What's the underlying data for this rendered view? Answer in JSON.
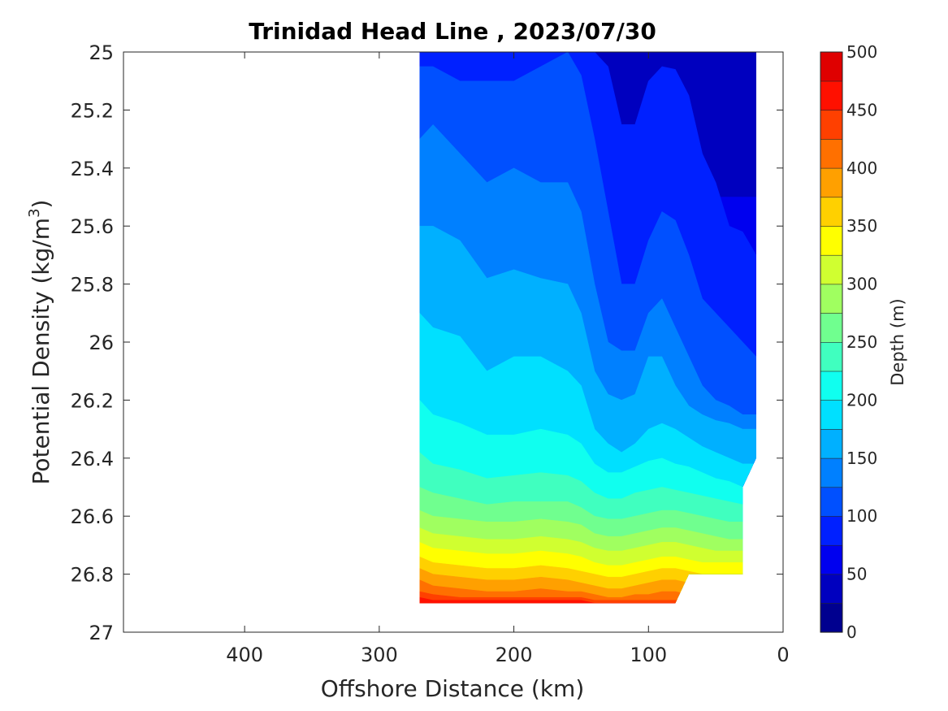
{
  "chart_data": {
    "type": "contour",
    "title": "Trinidad Head Line , 2023/07/30",
    "xlabel": "Offshore Distance (km)",
    "ylabel": "Potential Density (kg/m",
    "ylabel_superscript": "3",
    "ylabel_close": ")",
    "xlim": [
      490,
      0
    ],
    "ylim": [
      25,
      27
    ],
    "x_reversed": true,
    "y_reversed": true,
    "x_ticks": [
      400,
      300,
      200,
      100,
      0
    ],
    "y_ticks": [
      25,
      25.2,
      25.4,
      25.6,
      25.8,
      26,
      26.2,
      26.4,
      26.6,
      26.8,
      27
    ],
    "y_tick_labels": [
      "25",
      "25.2",
      "25.4",
      "25.6",
      "25.8",
      "26",
      "26.2",
      "26.4",
      "26.6",
      "26.8",
      "27"
    ],
    "grid": false,
    "colorscale": "jet",
    "colorbar": {
      "label": "Depth (m)",
      "min": 0,
      "max": 500,
      "step": 25,
      "ticks": [
        0,
        50,
        100,
        150,
        200,
        250,
        300,
        350,
        400,
        450,
        500
      ],
      "colors": [
        "#00008f",
        "#0000bf",
        "#0000ef",
        "#0020ff",
        "#0050ff",
        "#0080ff",
        "#00b0ff",
        "#00e0ff",
        "#10ffef",
        "#40ffbf",
        "#70ff8f",
        "#a0ff60",
        "#d0ff30",
        "#ffff00",
        "#ffd000",
        "#ffa000",
        "#ff7000",
        "#ff4000",
        "#ff1000",
        "#df0000"
      ]
    },
    "x": [
      270,
      260,
      240,
      220,
      200,
      180,
      160,
      150,
      140,
      130,
      120,
      110,
      100,
      90,
      80,
      70,
      60,
      50,
      40,
      30,
      20
    ],
    "contour_level_densities": [
      [
        25.0,
        25.0,
        25.0,
        25.0,
        25.0,
        25.0,
        25.0,
        25.0,
        25.0,
        25.0,
        25.0,
        25.0,
        25.0,
        25.0,
        25.0,
        25.0,
        25.0,
        25.0,
        25.0,
        25.0,
        25.0
      ],
      [
        25.0,
        25.0,
        25.0,
        25.0,
        25.1,
        25.05,
        25.0,
        25.0,
        25.0,
        25.0,
        25.0,
        25.0,
        25.0,
        25.0,
        25.0,
        25.0,
        25.0,
        25.0,
        25.0,
        25.0,
        25.0
      ],
      [
        25.0,
        25.0,
        25.0,
        25.0,
        25.0,
        25.0,
        25.0,
        25.0,
        25.0,
        25.2,
        25.4,
        25.38,
        25.2,
        25.05,
        25.06,
        25.2,
        25.4,
        25.5,
        25.5,
        25.5,
        25.5
      ],
      [
        25.0,
        25.0,
        25.0,
        25.0,
        25.0,
        25.0,
        25.0,
        25.0,
        25.0,
        25.05,
        25.25,
        25.25,
        25.1,
        25.05,
        25.06,
        25.15,
        25.35,
        25.45,
        25.6,
        25.62,
        25.7
      ],
      [
        25.05,
        25.05,
        25.1,
        25.1,
        25.1,
        25.05,
        25.0,
        25.08,
        25.3,
        25.55,
        25.8,
        25.8,
        25.65,
        25.55,
        25.58,
        25.7,
        25.85,
        25.9,
        25.95,
        26.0,
        26.05
      ],
      [
        25.3,
        25.25,
        25.35,
        25.45,
        25.4,
        25.45,
        25.45,
        25.55,
        25.8,
        26.0,
        26.03,
        26.03,
        25.9,
        25.85,
        25.95,
        26.05,
        26.15,
        26.2,
        26.22,
        26.25,
        26.25
      ],
      [
        25.6,
        25.6,
        25.65,
        25.78,
        25.75,
        25.78,
        25.8,
        25.9,
        26.1,
        26.18,
        26.2,
        26.18,
        26.05,
        26.05,
        26.15,
        26.22,
        26.25,
        26.27,
        26.28,
        26.3,
        26.3
      ],
      [
        25.9,
        25.95,
        25.98,
        26.1,
        26.05,
        26.05,
        26.1,
        26.15,
        26.3,
        26.35,
        26.38,
        26.35,
        26.3,
        26.28,
        26.3,
        26.33,
        26.36,
        26.38,
        26.4,
        26.42,
        26.42
      ],
      [
        26.2,
        26.25,
        26.28,
        26.32,
        26.32,
        26.3,
        26.32,
        26.35,
        26.42,
        26.45,
        26.45,
        26.43,
        26.41,
        26.4,
        26.42,
        26.43,
        26.45,
        26.47,
        26.48,
        26.5,
        26.5
      ],
      [
        26.38,
        26.42,
        26.44,
        26.47,
        26.46,
        26.45,
        26.46,
        26.48,
        26.52,
        26.54,
        26.54,
        26.52,
        26.51,
        26.5,
        26.51,
        26.52,
        26.53,
        26.54,
        26.55,
        26.56,
        26.56
      ],
      [
        26.5,
        26.52,
        26.54,
        26.56,
        26.55,
        26.55,
        26.55,
        26.57,
        26.6,
        26.61,
        26.61,
        26.6,
        26.59,
        26.58,
        26.58,
        26.59,
        26.6,
        26.61,
        26.62,
        26.62,
        26.62
      ],
      [
        26.58,
        26.6,
        26.61,
        26.62,
        26.62,
        26.61,
        26.62,
        26.63,
        26.66,
        26.67,
        26.67,
        26.66,
        26.65,
        26.64,
        26.64,
        26.65,
        26.66,
        26.67,
        26.68,
        26.68,
        26.68
      ],
      [
        26.64,
        26.66,
        26.67,
        26.68,
        26.68,
        26.67,
        26.68,
        26.69,
        26.71,
        26.72,
        26.72,
        26.71,
        26.7,
        26.69,
        26.69,
        26.7,
        26.71,
        26.72,
        26.72,
        26.72,
        26.72
      ],
      [
        26.69,
        26.71,
        26.72,
        26.73,
        26.73,
        26.72,
        26.73,
        26.74,
        26.76,
        26.77,
        26.77,
        26.76,
        26.75,
        26.74,
        26.74,
        26.75,
        26.76,
        26.76,
        26.76,
        26.76,
        26.76
      ],
      [
        26.74,
        26.76,
        26.77,
        26.78,
        26.78,
        26.77,
        26.78,
        26.79,
        26.8,
        26.81,
        26.81,
        26.8,
        26.79,
        26.78,
        26.78,
        26.79,
        26.8,
        26.8,
        26.8,
        26.8,
        26.8
      ],
      [
        26.78,
        26.8,
        26.81,
        26.82,
        26.82,
        26.81,
        26.82,
        26.83,
        26.84,
        26.85,
        26.85,
        26.84,
        26.83,
        26.82,
        26.82,
        26.83,
        26.84,
        26.84,
        26.84,
        26.84,
        26.84
      ],
      [
        26.82,
        26.84,
        26.85,
        26.86,
        26.86,
        26.85,
        26.86,
        26.86,
        26.87,
        26.88,
        26.88,
        26.87,
        26.87,
        26.86,
        26.86,
        26.87,
        26.88,
        26.88,
        26.88,
        26.88,
        26.88
      ],
      [
        26.86,
        26.87,
        26.88,
        26.88,
        26.88,
        26.88,
        26.88,
        26.88,
        26.89,
        26.89,
        26.89,
        26.89,
        26.89,
        26.89,
        26.89,
        26.89,
        26.89,
        26.89,
        26.89,
        26.89,
        26.89
      ],
      [
        26.88,
        26.89,
        26.89,
        26.89,
        26.89,
        26.89,
        26.89,
        26.89,
        26.9,
        26.9,
        26.9,
        26.9,
        26.9,
        26.9,
        26.9,
        26.9,
        26.9,
        26.9,
        26.9,
        26.9,
        26.9
      ],
      [
        26.9,
        26.9,
        26.9,
        26.9,
        26.9,
        26.9,
        26.9,
        26.9,
        26.9,
        26.9,
        26.9,
        26.9,
        26.9,
        26.9,
        26.9,
        26.9,
        26.9,
        26.9,
        26.9,
        26.9,
        26.9
      ]
    ],
    "data_boundary": [
      [
        270,
        25.0
      ],
      [
        20,
        25.0
      ],
      [
        20,
        26.4
      ],
      [
        30,
        26.5
      ],
      [
        30,
        26.8
      ],
      [
        70,
        26.8
      ],
      [
        80,
        26.9
      ],
      [
        270,
        26.9
      ]
    ]
  }
}
